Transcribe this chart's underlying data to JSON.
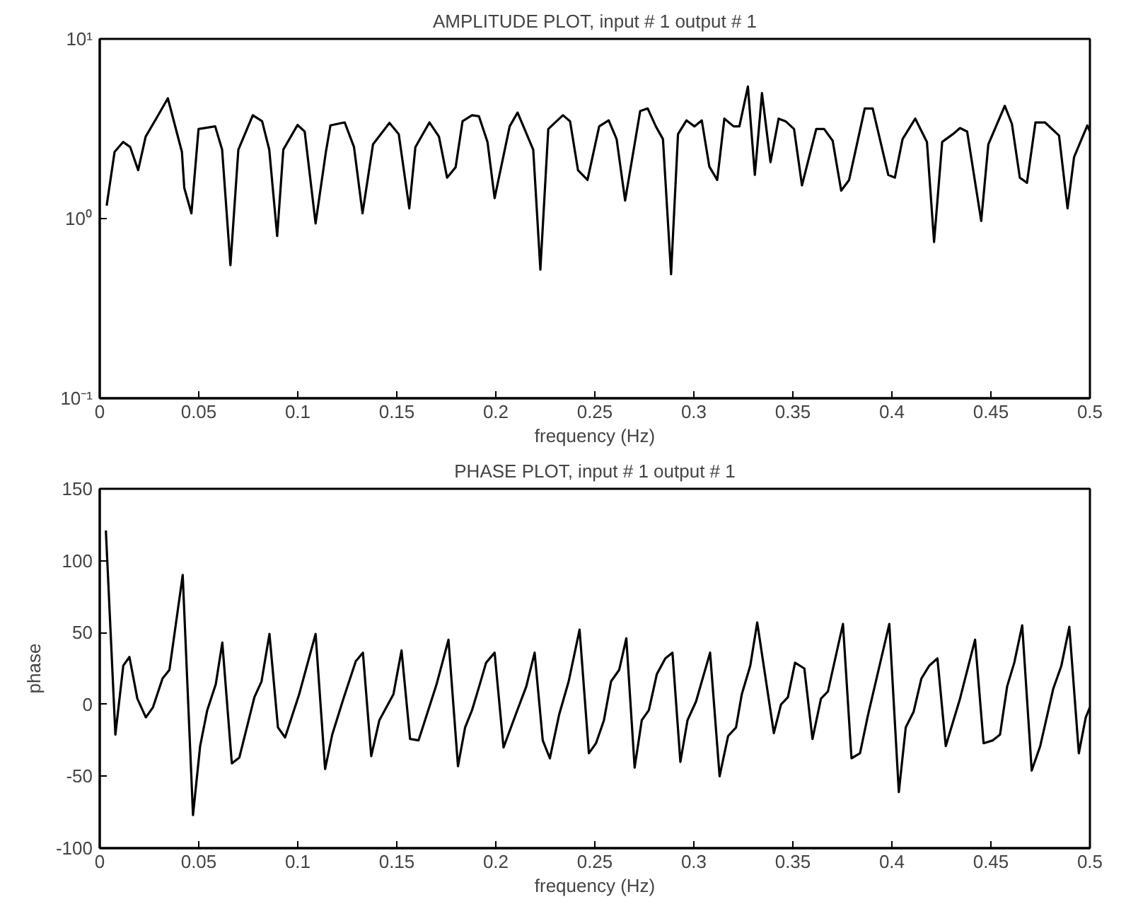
{
  "chart_data": [
    {
      "type": "line",
      "title": "AMPLITUDE PLOT, input # 1 output # 1",
      "xlabel": "frequency (Hz)",
      "log": "y",
      "xlim": [
        0,
        0.5
      ],
      "xticks": [
        0,
        0.05,
        0.1,
        0.15,
        0.2,
        0.25,
        0.3,
        0.35,
        0.4,
        0.45,
        0.5
      ],
      "ylim": [
        0.1,
        10
      ],
      "yticks": [
        {
          "value": 0.1,
          "label": "10⁻¹"
        },
        {
          "value": 1,
          "label": "10⁰"
        },
        {
          "value": 10,
          "label": "10¹"
        }
      ],
      "x": [
        0.0035,
        0.0075,
        0.0118,
        0.0154,
        0.0194,
        0.0232,
        0.0285,
        0.0344,
        0.0415,
        0.0427,
        0.0463,
        0.0499,
        0.0583,
        0.0618,
        0.066,
        0.07,
        0.0773,
        0.082,
        0.0856,
        0.0896,
        0.0927,
        0.0999,
        0.1035,
        0.109,
        0.1142,
        0.1165,
        0.1237,
        0.1284,
        0.1327,
        0.138,
        0.1463,
        0.151,
        0.1563,
        0.1594,
        0.1665,
        0.1713,
        0.1754,
        0.1797,
        0.1832,
        0.188,
        0.1915,
        0.1958,
        0.1994,
        0.207,
        0.211,
        0.2189,
        0.2225,
        0.2265,
        0.2339,
        0.2375,
        0.2415,
        0.2463,
        0.2522,
        0.257,
        0.261,
        0.2653,
        0.2729,
        0.2767,
        0.2808,
        0.2844,
        0.2885,
        0.292,
        0.2963,
        0.3003,
        0.304,
        0.3078,
        0.3118,
        0.3154,
        0.3201,
        0.323,
        0.3273,
        0.3308,
        0.3344,
        0.3387,
        0.3428,
        0.3463,
        0.3506,
        0.3546,
        0.3618,
        0.3658,
        0.3701,
        0.3744,
        0.3784,
        0.3863,
        0.3903,
        0.3982,
        0.4015,
        0.4054,
        0.4118,
        0.4177,
        0.4213,
        0.4254,
        0.4308,
        0.4344,
        0.438,
        0.4451,
        0.4487,
        0.457,
        0.4606,
        0.4646,
        0.4682,
        0.4725,
        0.4773,
        0.4844,
        0.4887,
        0.492,
        0.4987,
        0.5
      ],
      "series": [
        {
          "color": "#000000",
          "values": [
            1.18,
            2.35,
            2.67,
            2.5,
            1.86,
            2.86,
            3.6,
            4.67,
            2.35,
            1.48,
            1.07,
            3.15,
            3.26,
            2.42,
            0.55,
            2.42,
            3.76,
            3.48,
            2.42,
            0.8,
            2.42,
            3.32,
            3.05,
            0.94,
            2.35,
            3.3,
            3.43,
            2.5,
            1.07,
            2.59,
            3.41,
            2.95,
            1.14,
            2.5,
            3.43,
            2.86,
            1.69,
            1.93,
            3.48,
            3.76,
            3.71,
            2.67,
            1.3,
            3.26,
            3.89,
            2.42,
            0.52,
            3.15,
            3.76,
            3.48,
            1.86,
            1.64,
            3.26,
            3.52,
            2.77,
            1.26,
            3.97,
            4.1,
            3.26,
            2.77,
            0.49,
            2.95,
            3.52,
            3.26,
            3.52,
            1.95,
            1.64,
            3.6,
            3.26,
            3.26,
            5.43,
            1.75,
            4.99,
            2.06,
            3.6,
            3.48,
            3.15,
            1.53,
            3.15,
            3.15,
            2.71,
            1.43,
            1.64,
            4.1,
            4.1,
            1.75,
            1.69,
            2.77,
            3.6,
            2.67,
            0.74,
            2.67,
            2.95,
            3.19,
            3.05,
            0.97,
            2.59,
            4.24,
            3.37,
            1.69,
            1.58,
            3.43,
            3.43,
            2.9,
            1.14,
            2.2,
            3.3,
            3.05
          ]
        }
      ]
    },
    {
      "type": "line",
      "title": "PHASE PLOT, input # 1 output # 1",
      "xlabel": "frequency (Hz)",
      "ylabel": "phase",
      "xlim": [
        0,
        0.5
      ],
      "xticks": [
        0,
        0.05,
        0.1,
        0.15,
        0.2,
        0.25,
        0.3,
        0.35,
        0.4,
        0.45,
        0.5
      ],
      "ylim": [
        -100,
        150
      ],
      "yticks": [
        -100,
        -50,
        0,
        50,
        100,
        150
      ],
      "x": [
        0.0031,
        0.0079,
        0.0119,
        0.015,
        0.019,
        0.0233,
        0.0269,
        0.0317,
        0.0352,
        0.0419,
        0.0471,
        0.0507,
        0.0543,
        0.0586,
        0.0619,
        0.0667,
        0.0705,
        0.0781,
        0.0817,
        0.0857,
        0.09,
        0.0936,
        0.1007,
        0.109,
        0.1138,
        0.1174,
        0.1233,
        0.1293,
        0.1329,
        0.1371,
        0.1412,
        0.1483,
        0.1524,
        0.1567,
        0.161,
        0.1701,
        0.1761,
        0.1809,
        0.1845,
        0.188,
        0.1916,
        0.1951,
        0.1994,
        0.2039,
        0.2106,
        0.2154,
        0.2196,
        0.2237,
        0.2273,
        0.232,
        0.2368,
        0.2423,
        0.247,
        0.2506,
        0.2546,
        0.2582,
        0.2623,
        0.2659,
        0.2701,
        0.2737,
        0.2773,
        0.2813,
        0.2856,
        0.2892,
        0.2932,
        0.2968,
        0.3011,
        0.3082,
        0.313,
        0.3173,
        0.3213,
        0.3242,
        0.3285,
        0.332,
        0.3404,
        0.344,
        0.3475,
        0.3511,
        0.3558,
        0.3599,
        0.3642,
        0.3677,
        0.3753,
        0.3796,
        0.3839,
        0.388,
        0.3987,
        0.4035,
        0.407,
        0.411,
        0.4149,
        0.4189,
        0.423,
        0.4272,
        0.4344,
        0.442,
        0.4463,
        0.451,
        0.4546,
        0.4582,
        0.4618,
        0.4658,
        0.4706,
        0.4749,
        0.4815,
        0.4856,
        0.4896,
        0.4944,
        0.4979,
        0.5
      ],
      "series": [
        {
          "color": "#000000",
          "values": [
            121,
            -21,
            27,
            33,
            4,
            -9,
            -2,
            18,
            24,
            90,
            -77,
            -29,
            -4,
            14,
            43,
            -41,
            -37,
            5,
            16,
            49,
            -16,
            -23,
            7,
            49,
            -45,
            -21,
            5,
            30,
            36,
            -36,
            -11,
            7,
            37.5,
            -24,
            -25,
            14,
            45,
            -43,
            -16,
            -4,
            12.5,
            29,
            36,
            -30,
            -5,
            12.5,
            36,
            -25,
            -37.5,
            -7,
            16,
            52,
            -34,
            -27,
            -11,
            16,
            24,
            46,
            -44,
            -11,
            -4,
            21,
            32,
            36,
            -40,
            -11,
            2,
            36,
            -50,
            -22,
            -16,
            7,
            27,
            57,
            -20,
            0,
            5,
            29,
            25,
            -24,
            4,
            9,
            56,
            -37.5,
            -34,
            -7,
            56,
            -61,
            -16,
            -5,
            18,
            27,
            32,
            -29,
            4,
            45,
            -27,
            -25,
            -21,
            12.5,
            29,
            55,
            -46,
            -29,
            11,
            27,
            54,
            -34,
            -9,
            -2
          ]
        }
      ]
    }
  ]
}
